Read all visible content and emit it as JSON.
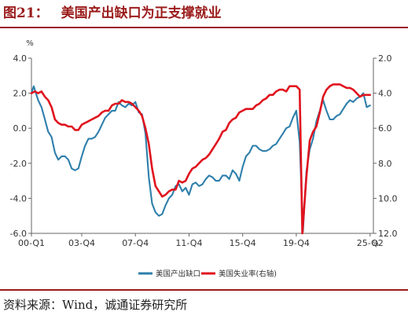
{
  "figure": {
    "label": "图21：",
    "title": "美国产出缺口为正支撑就业",
    "source": "资料来源：Wind，诚通证券研究所"
  },
  "colors": {
    "title": "#9b1b1b",
    "rule": "#9b1b1b",
    "axis": "#666666",
    "output_gap": "#2e7fab",
    "unemployment": "#e0141e"
  },
  "chart_data": {
    "type": "line",
    "x_tick_labels": [
      "00-Q1",
      "03-Q4",
      "07-Q4",
      "11-Q4",
      "15-Q4",
      "19-Q4",
      "25-Q2"
    ],
    "x_tick_positions": [
      2000.0,
      2003.75,
      2007.75,
      2011.75,
      2015.75,
      2019.75,
      2025.25
    ],
    "xlim": [
      2000.0,
      2025.5
    ],
    "left_axis": {
      "unit": "%",
      "ylim": [
        -6.0,
        4.0
      ],
      "ticks": [
        "-6.0",
        "-4.0",
        "-2.0",
        "0.0",
        "2.0",
        "4.0"
      ]
    },
    "right_axis": {
      "unit": "%",
      "ylim": [
        2.0,
        12.0
      ],
      "inverted": true,
      "ticks": [
        "2.0",
        "4.0",
        "6.0",
        "8.0",
        "10.0",
        "12.0"
      ]
    },
    "legend_position": "bottom-center",
    "grid": false,
    "series": [
      {
        "name": "美国产出缺口",
        "axis": "left",
        "color": "#2e7fab",
        "points": [
          [
            2000.0,
            2.0
          ],
          [
            2000.17,
            2.4
          ],
          [
            2000.5,
            1.6
          ],
          [
            2000.75,
            1.2
          ],
          [
            2001.0,
            0.5
          ],
          [
            2001.25,
            -0.2
          ],
          [
            2001.5,
            -0.5
          ],
          [
            2001.75,
            -1.4
          ],
          [
            2002.0,
            -1.8
          ],
          [
            2002.25,
            -1.6
          ],
          [
            2002.5,
            -1.6
          ],
          [
            2002.75,
            -1.8
          ],
          [
            2003.0,
            -2.3
          ],
          [
            2003.25,
            -2.4
          ],
          [
            2003.5,
            -2.3
          ],
          [
            2003.75,
            -1.6
          ],
          [
            2004.0,
            -1.0
          ],
          [
            2004.25,
            -0.6
          ],
          [
            2004.5,
            -0.6
          ],
          [
            2004.75,
            -0.5
          ],
          [
            2005.0,
            -0.2
          ],
          [
            2005.25,
            0.2
          ],
          [
            2005.5,
            0.6
          ],
          [
            2005.75,
            0.8
          ],
          [
            2006.0,
            1.0
          ],
          [
            2006.25,
            1.0
          ],
          [
            2006.5,
            1.5
          ],
          [
            2006.75,
            1.3
          ],
          [
            2007.0,
            1.2
          ],
          [
            2007.25,
            1.4
          ],
          [
            2007.5,
            1.3
          ],
          [
            2007.75,
            1.5
          ],
          [
            2008.0,
            0.9
          ],
          [
            2008.25,
            0.8
          ],
          [
            2008.5,
            -0.3
          ],
          [
            2008.75,
            -2.8
          ],
          [
            2009.0,
            -4.3
          ],
          [
            2009.25,
            -4.8
          ],
          [
            2009.5,
            -5.0
          ],
          [
            2009.75,
            -4.9
          ],
          [
            2010.0,
            -4.4
          ],
          [
            2010.25,
            -4.0
          ],
          [
            2010.5,
            -3.8
          ],
          [
            2010.75,
            -3.3
          ],
          [
            2011.0,
            -3.2
          ],
          [
            2011.25,
            -3.6
          ],
          [
            2011.5,
            -3.4
          ],
          [
            2011.75,
            -3.8
          ],
          [
            2012.0,
            -3.2
          ],
          [
            2012.25,
            -3.1
          ],
          [
            2012.5,
            -3.3
          ],
          [
            2012.75,
            -3.2
          ],
          [
            2013.0,
            -2.9
          ],
          [
            2013.25,
            -2.7
          ],
          [
            2013.5,
            -2.8
          ],
          [
            2013.75,
            -3.0
          ],
          [
            2014.0,
            -3.0
          ],
          [
            2014.25,
            -2.7
          ],
          [
            2014.5,
            -2.7
          ],
          [
            2014.75,
            -2.9
          ],
          [
            2015.0,
            -2.4
          ],
          [
            2015.25,
            -2.6
          ],
          [
            2015.5,
            -3.0
          ],
          [
            2015.75,
            -2.2
          ],
          [
            2016.0,
            -1.6
          ],
          [
            2016.25,
            -1.4
          ],
          [
            2016.5,
            -1.0
          ],
          [
            2016.75,
            -1.0
          ],
          [
            2017.0,
            -1.2
          ],
          [
            2017.25,
            -1.3
          ],
          [
            2017.5,
            -1.3
          ],
          [
            2017.75,
            -1.2
          ],
          [
            2018.0,
            -1.0
          ],
          [
            2018.25,
            -0.9
          ],
          [
            2018.5,
            -0.6
          ],
          [
            2018.75,
            -0.3
          ],
          [
            2019.0,
            0.0
          ],
          [
            2019.25,
            0.1
          ],
          [
            2019.5,
            0.6
          ],
          [
            2019.75,
            1.0
          ],
          [
            2020.0,
            -0.8
          ],
          [
            2020.25,
            -5.9
          ],
          [
            2020.5,
            -2.5
          ],
          [
            2020.75,
            -1.2
          ],
          [
            2021.0,
            -0.6
          ],
          [
            2021.25,
            0.4
          ],
          [
            2021.5,
            1.0
          ],
          [
            2021.75,
            1.6
          ],
          [
            2022.0,
            1.0
          ],
          [
            2022.25,
            0.5
          ],
          [
            2022.5,
            0.5
          ],
          [
            2022.75,
            0.7
          ],
          [
            2023.0,
            0.8
          ],
          [
            2023.25,
            1.1
          ],
          [
            2023.5,
            1.4
          ],
          [
            2023.75,
            1.6
          ],
          [
            2024.0,
            1.5
          ],
          [
            2024.25,
            1.7
          ],
          [
            2024.5,
            1.8
          ],
          [
            2024.75,
            2.0
          ],
          [
            2025.0,
            1.2
          ],
          [
            2025.25,
            1.3
          ]
        ]
      },
      {
        "name": "美国失业率(右轴)",
        "axis": "right",
        "color": "#e0141e",
        "points": [
          [
            2000.0,
            4.0
          ],
          [
            2000.25,
            3.9
          ],
          [
            2000.5,
            4.0
          ],
          [
            2000.75,
            3.9
          ],
          [
            2001.0,
            4.2
          ],
          [
            2001.25,
            4.4
          ],
          [
            2001.5,
            4.8
          ],
          [
            2001.75,
            5.5
          ],
          [
            2002.0,
            5.7
          ],
          [
            2002.25,
            5.8
          ],
          [
            2002.5,
            5.8
          ],
          [
            2002.75,
            5.9
          ],
          [
            2003.0,
            5.9
          ],
          [
            2003.25,
            6.1
          ],
          [
            2003.5,
            6.1
          ],
          [
            2003.75,
            5.8
          ],
          [
            2004.0,
            5.7
          ],
          [
            2004.25,
            5.6
          ],
          [
            2004.5,
            5.5
          ],
          [
            2004.75,
            5.4
          ],
          [
            2005.0,
            5.3
          ],
          [
            2005.25,
            5.1
          ],
          [
            2005.5,
            5.0
          ],
          [
            2005.75,
            5.0
          ],
          [
            2006.0,
            4.7
          ],
          [
            2006.25,
            4.6
          ],
          [
            2006.5,
            4.6
          ],
          [
            2006.75,
            4.4
          ],
          [
            2007.0,
            4.5
          ],
          [
            2007.25,
            4.5
          ],
          [
            2007.5,
            4.6
          ],
          [
            2007.75,
            4.8
          ],
          [
            2008.0,
            5.0
          ],
          [
            2008.25,
            5.3
          ],
          [
            2008.5,
            6.0
          ],
          [
            2008.75,
            6.9
          ],
          [
            2009.0,
            8.3
          ],
          [
            2009.25,
            9.3
          ],
          [
            2009.5,
            9.6
          ],
          [
            2009.75,
            9.9
          ],
          [
            2010.0,
            9.8
          ],
          [
            2010.25,
            9.6
          ],
          [
            2010.5,
            9.5
          ],
          [
            2010.75,
            9.5
          ],
          [
            2011.0,
            9.0
          ],
          [
            2011.25,
            9.1
          ],
          [
            2011.5,
            9.0
          ],
          [
            2011.75,
            8.6
          ],
          [
            2012.0,
            8.3
          ],
          [
            2012.25,
            8.2
          ],
          [
            2012.5,
            8.0
          ],
          [
            2012.75,
            7.8
          ],
          [
            2013.0,
            7.7
          ],
          [
            2013.25,
            7.5
          ],
          [
            2013.5,
            7.2
          ],
          [
            2013.75,
            6.9
          ],
          [
            2014.0,
            6.6
          ],
          [
            2014.25,
            6.2
          ],
          [
            2014.5,
            6.1
          ],
          [
            2014.75,
            5.7
          ],
          [
            2015.0,
            5.5
          ],
          [
            2015.25,
            5.4
          ],
          [
            2015.5,
            5.1
          ],
          [
            2015.75,
            5.0
          ],
          [
            2016.0,
            4.9
          ],
          [
            2016.25,
            4.9
          ],
          [
            2016.5,
            4.9
          ],
          [
            2016.75,
            4.7
          ],
          [
            2017.0,
            4.6
          ],
          [
            2017.25,
            4.4
          ],
          [
            2017.5,
            4.3
          ],
          [
            2017.75,
            4.1
          ],
          [
            2018.0,
            4.1
          ],
          [
            2018.25,
            3.9
          ],
          [
            2018.5,
            3.8
          ],
          [
            2018.75,
            3.8
          ],
          [
            2019.0,
            3.9
          ],
          [
            2019.25,
            3.6
          ],
          [
            2019.5,
            3.6
          ],
          [
            2019.75,
            3.6
          ],
          [
            2020.0,
            3.8
          ],
          [
            2020.2,
            13.0
          ],
          [
            2020.5,
            8.8
          ],
          [
            2020.75,
            6.7
          ],
          [
            2021.0,
            6.2
          ],
          [
            2021.25,
            5.9
          ],
          [
            2021.5,
            5.1
          ],
          [
            2021.75,
            4.2
          ],
          [
            2022.0,
            3.8
          ],
          [
            2022.25,
            3.6
          ],
          [
            2022.5,
            3.5
          ],
          [
            2022.75,
            3.5
          ],
          [
            2023.0,
            3.5
          ],
          [
            2023.25,
            3.6
          ],
          [
            2023.5,
            3.7
          ],
          [
            2023.75,
            3.7
          ],
          [
            2024.0,
            3.8
          ],
          [
            2024.25,
            4.0
          ],
          [
            2024.5,
            4.2
          ],
          [
            2024.75,
            4.1
          ],
          [
            2025.0,
            4.1
          ],
          [
            2025.25,
            4.1
          ]
        ]
      }
    ]
  }
}
